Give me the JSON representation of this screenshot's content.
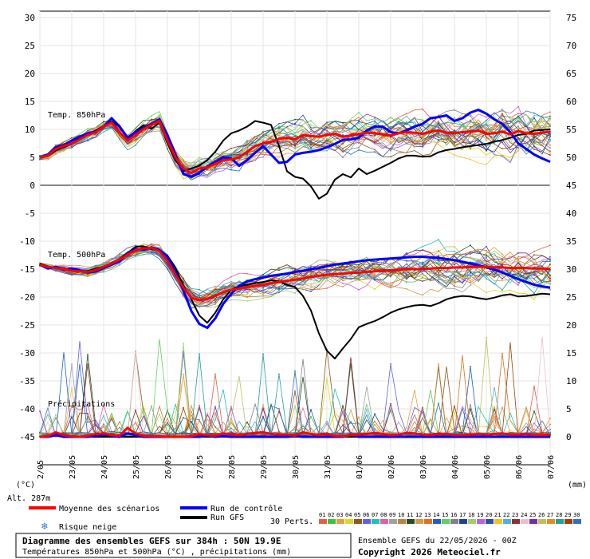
{
  "chart_data": {
    "type": "line",
    "title": "Diagramme des ensembles GEFS sur 384h : 50N 19.9E",
    "subtitle": "Températures 850hPa et 500hPa (°C) , précipitations (mm)",
    "left_axis": {
      "unit": "(°C)",
      "ticks": [
        30,
        25,
        20,
        15,
        10,
        5,
        0,
        -5,
        -10,
        -15,
        -20,
        -25,
        -30,
        -35,
        -40,
        -45
      ],
      "range": [
        -50,
        30
      ]
    },
    "right_axis": {
      "unit": "(mm)",
      "ticks": [
        75,
        70,
        65,
        60,
        55,
        50,
        45,
        40,
        35,
        30,
        25,
        20,
        15,
        10,
        5,
        0
      ]
    },
    "x_ticks": [
      "23/05",
      "24/05",
      "25/05",
      "26/05",
      "27/05",
      "28/05",
      "29/05",
      "30/05",
      "31/05",
      "01/06",
      "02/06",
      "03/06",
      "04/06",
      "05/06",
      "06/06",
      "07/06"
    ],
    "x_tick_prefix": "2/05",
    "panels": {
      "t850_label": "Temp. 850hPa",
      "t500_label": "Temp. 500hPa",
      "precip_label": "Précipitations"
    },
    "altitude": "Alt. 287m",
    "timesteps": 65,
    "t850": {
      "mean": [
        5,
        5.3,
        6.5,
        7,
        7.5,
        8.2,
        9,
        9.5,
        10.5,
        11.2,
        9.5,
        8,
        9,
        10,
        10.8,
        11.5,
        8,
        5,
        3,
        2.2,
        3,
        3.2,
        3.8,
        4.5,
        4.6,
        5,
        6,
        7,
        7.5,
        7.8,
        8.3,
        8.5,
        8.2,
        9,
        8.8,
        8.7,
        9,
        9.2,
        8.7,
        8.9,
        9.2,
        9.4,
        9.3,
        9.1,
        8.9,
        9.3,
        9.5,
        9.4,
        9.2,
        9.6,
        9.8,
        9.4,
        9.3,
        9.5,
        9.6,
        9.8,
        9.2,
        9.3,
        9.6,
        9.1,
        9.7,
        9.3,
        9.2,
        9.4,
        9.6
      ],
      "control": [
        5,
        5.5,
        6.8,
        7.2,
        8,
        8.7,
        9.3,
        9.6,
        10.5,
        12,
        10.5,
        8.5,
        9.5,
        10.2,
        11,
        11.8,
        9,
        5.5,
        2,
        1.5,
        2.2,
        3.3,
        4.2,
        5,
        4.8,
        3.5,
        4.5,
        5.8,
        7,
        5.5,
        4,
        4.2,
        5.5,
        5.8,
        6,
        6.3,
        6.8,
        7.4,
        8.1,
        8.2,
        8.5,
        9.8,
        10.5,
        10.5,
        9.5,
        9.3,
        9.8,
        10.5,
        11,
        12,
        12.2,
        12.5,
        11.5,
        12,
        13,
        13.5,
        12.8,
        11.8,
        11,
        9.5,
        7.5,
        6.5,
        5.5,
        4.8,
        4.2
      ],
      "gfs": [
        5,
        5.2,
        6.2,
        6.8,
        7.4,
        8.4,
        9.1,
        9.8,
        10.6,
        11.4,
        10.5,
        8.4,
        9.7,
        10.7,
        10.1,
        11.2,
        7.5,
        4.5,
        2.5,
        3,
        3.5,
        4.5,
        6,
        8,
        9.3,
        9.8,
        10.5,
        11.5,
        11.2,
        10.8,
        7,
        2.5,
        1.5,
        1.2,
        -0.2,
        -2.4,
        -1.5,
        1,
        2,
        1.4,
        3,
        2,
        2.6,
        3.3,
        4,
        4.8,
        5.3,
        5.3,
        5.1,
        5.2,
        5.9,
        6.3,
        6.5,
        6.8,
        7,
        7.2,
        7.4,
        7.8,
        8.1,
        8.5,
        9,
        9.2,
        9.8,
        9.9,
        10
      ]
    },
    "t500": {
      "mean": [
        -14.2,
        -14.6,
        -14.8,
        -15,
        -15.3,
        -15.4,
        -15.5,
        -15.2,
        -14.6,
        -14,
        -13.3,
        -12.4,
        -11.6,
        -11.3,
        -11.2,
        -11.8,
        -13.5,
        -16,
        -18.3,
        -20.1,
        -20.6,
        -20.3,
        -19.8,
        -19.1,
        -18.7,
        -18.5,
        -18.2,
        -18,
        -17.8,
        -17.5,
        -17.3,
        -17.1,
        -16.9,
        -16.7,
        -16.4,
        -16.2,
        -16,
        -15.9,
        -15.8,
        -15.7,
        -15.6,
        -15.5,
        -15.4,
        -15.3,
        -15.2,
        -15.1,
        -15,
        -15,
        -15,
        -14.9,
        -14.8,
        -14.8,
        -14.7,
        -14.7,
        -14.6,
        -14.6,
        -14.6,
        -14.7,
        -14.7,
        -14.8,
        -14.8,
        -14.8,
        -14.9,
        -14.9,
        -15
      ],
      "control": [
        -14.2,
        -14.9,
        -14.6,
        -15.1,
        -14.9,
        -15.2,
        -15.6,
        -15.4,
        -14.8,
        -14.2,
        -13.6,
        -12.2,
        -11.4,
        -11.5,
        -11.1,
        -11.6,
        -12.8,
        -15.5,
        -18.8,
        -22.5,
        -24.8,
        -25.5,
        -23.8,
        -21.2,
        -19.4,
        -18,
        -17.2,
        -16.8,
        -16.5,
        -16.2,
        -16,
        -15.8,
        -15.5,
        -15.3,
        -15,
        -14.8,
        -14.5,
        -14.2,
        -14,
        -13.8,
        -13.6,
        -13.4,
        -13.3,
        -13.2,
        -13.1,
        -13,
        -12.9,
        -12.8,
        -12.8,
        -12.9,
        -13,
        -13.2,
        -13.4,
        -13.7,
        -14,
        -14.3,
        -14.7,
        -15.1,
        -15.6,
        -16.2,
        -16.8,
        -17.3,
        -17.8,
        -18.1,
        -18.3
      ],
      "gfs": [
        -14,
        -14.5,
        -14.8,
        -15,
        -15.2,
        -15.4,
        -15.3,
        -15,
        -14.5,
        -13.9,
        -13.2,
        -12.1,
        -11,
        -10.9,
        -11.4,
        -11.6,
        -12.6,
        -14.8,
        -17.9,
        -20.4,
        -23.3,
        -24.6,
        -22.8,
        -20.4,
        -18.7,
        -18.1,
        -17.8,
        -17.5,
        -17.3,
        -17,
        -17.2,
        -17.8,
        -18.2,
        -19.8,
        -22.4,
        -26.5,
        -29.6,
        -31,
        -29.2,
        -27.5,
        -25.4,
        -24.8,
        -24.3,
        -23.6,
        -22.8,
        -22.2,
        -21.8,
        -21.5,
        -21.4,
        -21.6,
        -21.1,
        -20.4,
        -20,
        -19.8,
        -19.9,
        -20.2,
        -20.4,
        -20.1,
        -19.7,
        -19.5,
        -19.9,
        -19.8,
        -19.6,
        -19.4,
        -19.5
      ]
    },
    "precip": {
      "mean": [
        0,
        0.1,
        0.8,
        0.3,
        0.1,
        0,
        0.2,
        0.5,
        0.6,
        0.3,
        0.2,
        1.6,
        0.6,
        0.2,
        0.1,
        0.1,
        0,
        0,
        0,
        0.1,
        0.5,
        0.3,
        0.2,
        0.6,
        0.4,
        0.3,
        0.5,
        0.7,
        0.8,
        0.5,
        0.4,
        0.4,
        0.2,
        0.8,
        0.5,
        0.3,
        0.4,
        0.2,
        0.1,
        0.3,
        0.4,
        0.5,
        0.7,
        0.5,
        0.3,
        0.4,
        0.7,
        0.6,
        0.4,
        0.3,
        0.5,
        0.5,
        0.3,
        0.3,
        0.4,
        0.5,
        0.4,
        0.5,
        0.6,
        0.4,
        0.4,
        0.5,
        0.3,
        0.3,
        0.4
      ],
      "control": [
        0,
        0,
        0.3,
        0,
        0,
        0,
        0,
        0.2,
        0.4,
        0.2,
        0,
        0.6,
        0.3,
        0,
        0,
        0,
        0,
        0,
        0,
        0,
        0,
        0.2,
        0,
        0.1,
        0,
        0,
        0,
        0,
        0,
        0,
        0,
        0,
        0.1,
        0,
        0,
        0,
        0,
        0,
        0,
        0.4,
        0,
        0,
        0,
        0,
        0,
        0,
        0,
        0,
        0,
        0,
        0,
        0,
        0,
        0,
        0,
        0,
        0,
        0,
        0,
        0,
        0,
        0,
        0,
        0,
        0
      ],
      "gfs": [
        0,
        0,
        0.6,
        0.4,
        0,
        0,
        0,
        0,
        0,
        0,
        0,
        0,
        0,
        0,
        0,
        0,
        0,
        0,
        0,
        0,
        0,
        0,
        0,
        0,
        0,
        0,
        0,
        0,
        0,
        0,
        0,
        0,
        0,
        0,
        0,
        0,
        0,
        0,
        0,
        0,
        0,
        0,
        0,
        0,
        0,
        0,
        0,
        0,
        0,
        0,
        0,
        0,
        0,
        0,
        0,
        0,
        0,
        0,
        0,
        0,
        0,
        0,
        0,
        0,
        0
      ]
    }
  },
  "legend": {
    "mean_label": "Moyenne des scénarios",
    "control_label": "Run de contrôle",
    "gfs_label": "Run GFS",
    "snow_label": "Risque neige",
    "perts_label": "30 Perts.",
    "pert_numbers": [
      "01",
      "02",
      "03",
      "04",
      "05",
      "06",
      "07",
      "08",
      "09",
      "10",
      "11",
      "12",
      "13",
      "14",
      "15",
      "16",
      "17",
      "18",
      "19",
      "20",
      "21",
      "22",
      "23",
      "24",
      "25",
      "26",
      "27",
      "28",
      "29",
      "30"
    ],
    "pert_colors": [
      "#e0604d",
      "#40c040",
      "#e0a040",
      "#d8d820",
      "#8a5a20",
      "#6060e0",
      "#20c0c0",
      "#e060a0",
      "#a0a0a0",
      "#c08040",
      "#205020",
      "#d89850",
      "#e07020",
      "#2060c0",
      "#60d060",
      "#808080",
      "#204090",
      "#a0d060",
      "#c060e0",
      "#3050a0",
      "#f0c030",
      "#50b0e0",
      "#903030",
      "#e8c0d0",
      "#7030a0",
      "#c0c060",
      "#e09020",
      "#20a0a0",
      "#a04000",
      "#3070c0"
    ],
    "mean_color": "#ff0000",
    "control_color": "#0000ff",
    "gfs_color": "#000000",
    "snow_color": "#2a7de0"
  },
  "footer": {
    "title": "Diagramme des ensembles GEFS sur 384h : 50N 19.9E",
    "subtitle": "Températures 850hPa et 500hPa (°C) , précipitations (mm)",
    "run_info": "Ensemble GEFS du 22/05/2026 - 00Z",
    "copyright": "Copyright 2026 Meteociel.fr"
  }
}
